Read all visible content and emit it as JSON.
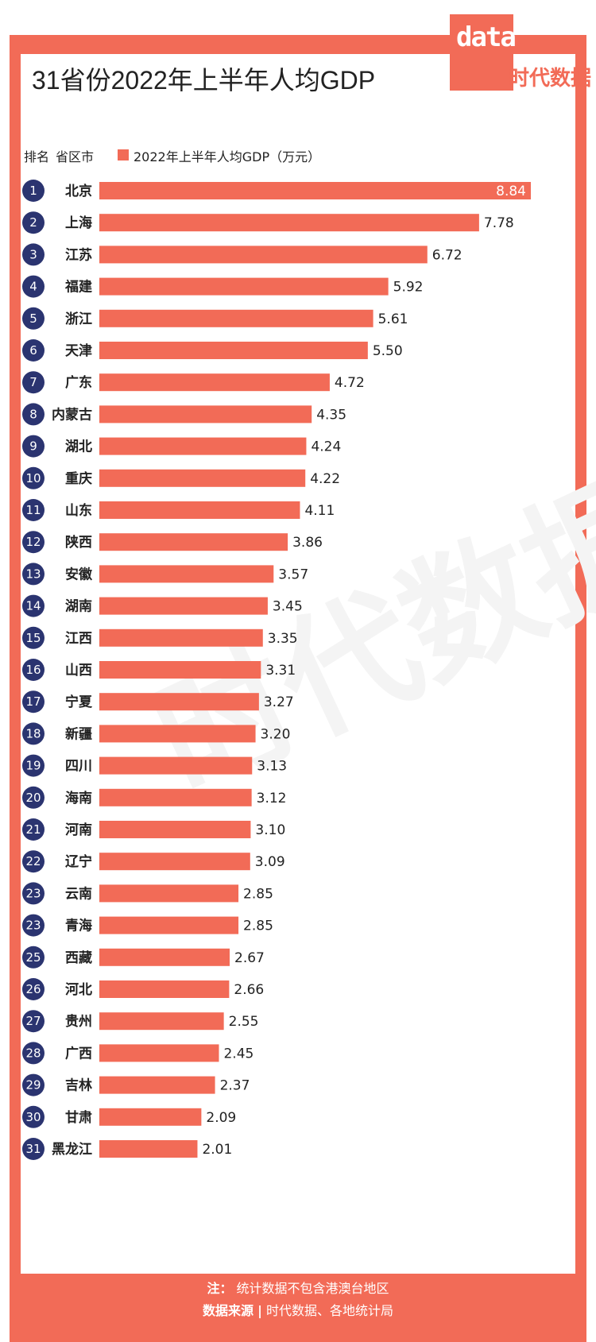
{
  "title": "31省份2022年上半年人均GDP",
  "logo": {
    "text": "data",
    "cn": "时代数据"
  },
  "header": {
    "rank": "排名",
    "region": "省区市",
    "legend": "2022年上半年人均GDP（万元）"
  },
  "colors": {
    "bar": "#f26b57",
    "rank_circle": "#2b3470"
  },
  "chart_data": {
    "type": "bar",
    "orientation": "horizontal",
    "series": [
      {
        "name": "2022年上半年人均GDP（万元）"
      }
    ],
    "rows": [
      {
        "rank": "1",
        "name": "北京",
        "value": 8.84,
        "label": "8.84"
      },
      {
        "rank": "2",
        "name": "上海",
        "value": 7.78,
        "label": "7.78"
      },
      {
        "rank": "3",
        "name": "江苏",
        "value": 6.72,
        "label": "6.72"
      },
      {
        "rank": "4",
        "name": "福建",
        "value": 5.92,
        "label": "5.92"
      },
      {
        "rank": "5",
        "name": "浙江",
        "value": 5.61,
        "label": "5.61"
      },
      {
        "rank": "6",
        "name": "天津",
        "value": 5.5,
        "label": "5.50"
      },
      {
        "rank": "7",
        "name": "广东",
        "value": 4.72,
        "label": "4.72"
      },
      {
        "rank": "8",
        "name": "内蒙古",
        "value": 4.35,
        "label": "4.35"
      },
      {
        "rank": "9",
        "name": "湖北",
        "value": 4.24,
        "label": "4.24"
      },
      {
        "rank": "10",
        "name": "重庆",
        "value": 4.22,
        "label": "4.22"
      },
      {
        "rank": "11",
        "name": "山东",
        "value": 4.11,
        "label": "4.11"
      },
      {
        "rank": "12",
        "name": "陕西",
        "value": 3.86,
        "label": "3.86"
      },
      {
        "rank": "13",
        "name": "安徽",
        "value": 3.57,
        "label": "3.57"
      },
      {
        "rank": "14",
        "name": "湖南",
        "value": 3.45,
        "label": "3.45"
      },
      {
        "rank": "15",
        "name": "江西",
        "value": 3.35,
        "label": "3.35"
      },
      {
        "rank": "16",
        "name": "山西",
        "value": 3.31,
        "label": "3.31"
      },
      {
        "rank": "17",
        "name": "宁夏",
        "value": 3.27,
        "label": "3.27"
      },
      {
        "rank": "18",
        "name": "新疆",
        "value": 3.2,
        "label": "3.20"
      },
      {
        "rank": "19",
        "name": "四川",
        "value": 3.13,
        "label": "3.13"
      },
      {
        "rank": "20",
        "name": "海南",
        "value": 3.12,
        "label": "3.12"
      },
      {
        "rank": "21",
        "name": "河南",
        "value": 3.1,
        "label": "3.10"
      },
      {
        "rank": "22",
        "name": "辽宁",
        "value": 3.09,
        "label": "3.09"
      },
      {
        "rank": "23",
        "name": "云南",
        "value": 2.85,
        "label": "2.85"
      },
      {
        "rank": "23",
        "name": "青海",
        "value": 2.85,
        "label": "2.85"
      },
      {
        "rank": "25",
        "name": "西藏",
        "value": 2.67,
        "label": "2.67"
      },
      {
        "rank": "26",
        "name": "河北",
        "value": 2.66,
        "label": "2.66"
      },
      {
        "rank": "27",
        "name": "贵州",
        "value": 2.55,
        "label": "2.55"
      },
      {
        "rank": "28",
        "name": "广西",
        "value": 2.45,
        "label": "2.45"
      },
      {
        "rank": "29",
        "name": "吉林",
        "value": 2.37,
        "label": "2.37"
      },
      {
        "rank": "30",
        "name": "甘肃",
        "value": 2.09,
        "label": "2.09"
      },
      {
        "rank": "31",
        "name": "黑龙江",
        "value": 2.01,
        "label": "2.01"
      }
    ],
    "xlim": [
      0,
      8.84
    ]
  },
  "footer": {
    "note_label": "注：",
    "note_text": "统计数据不包含港澳台地区",
    "source_label": "数据来源",
    "source_sep": "|",
    "source_text": "时代数据、各地统计局"
  }
}
